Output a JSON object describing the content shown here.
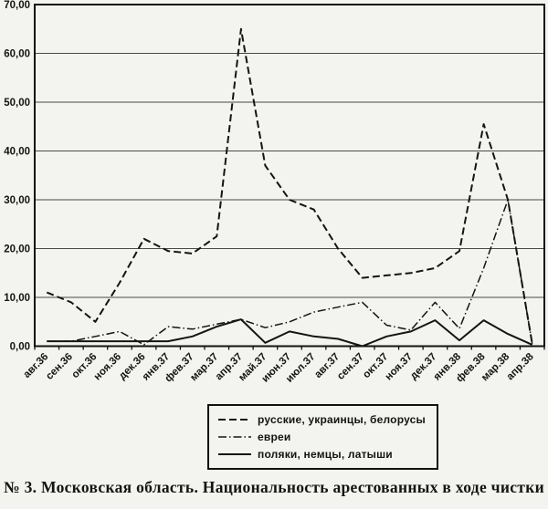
{
  "chart_data": {
    "type": "line",
    "title": "",
    "categories": [
      "авг.36",
      "сен.36",
      "окт.36",
      "ноя.36",
      "дек.36",
      "янв.37",
      "фев.37",
      "мар.37",
      "апр.37",
      "май.37",
      "июн.37",
      "июл.37",
      "авг.37",
      "сен.37",
      "окт.37",
      "ноя.37",
      "дек.37",
      "янв.38",
      "фев.38",
      "мар.38",
      "апр.38"
    ],
    "series": [
      {
        "name": "русские, украинцы, белорусы",
        "line_style": "dashed",
        "values": [
          11,
          9,
          5,
          13,
          22,
          19.5,
          19,
          22.5,
          65,
          37,
          30,
          28,
          20,
          14,
          14.5,
          15,
          16,
          19.5,
          45.5,
          30,
          0.5
        ]
      },
      {
        "name": "евреи",
        "line_style": "dash-dot",
        "values": [
          1,
          1,
          2,
          3,
          0.3,
          4,
          3.5,
          4.5,
          5.5,
          3.8,
          5,
          7,
          8,
          9,
          4.3,
          3.3,
          9,
          3.6,
          16,
          30,
          0.5
        ]
      },
      {
        "name": "поляки, немцы, латыши",
        "line_style": "solid",
        "values": [
          1,
          1,
          1,
          1,
          1,
          1,
          2,
          4,
          5.5,
          0.7,
          3,
          2,
          1.5,
          0,
          2,
          3,
          5.3,
          1.2,
          5.3,
          2.5,
          0.3
        ]
      }
    ],
    "xlabel": "",
    "ylabel": "",
    "ylim": [
      0,
      70
    ],
    "ytick_step": 10,
    "ytick_labels": [
      "0,00",
      "10,00",
      "20,00",
      "30,00",
      "40,00",
      "50,00",
      "60,00",
      "70,00"
    ],
    "grid": true,
    "legend_position": "bottom-center"
  },
  "caption": "№ 3. Московская область. Национальность арестованных в ходе чистки",
  "colors": {
    "line": "#141414",
    "grid": "#4a4a4a",
    "frame": "#111111",
    "background": "#f3f3f0",
    "text": "#141414"
  }
}
